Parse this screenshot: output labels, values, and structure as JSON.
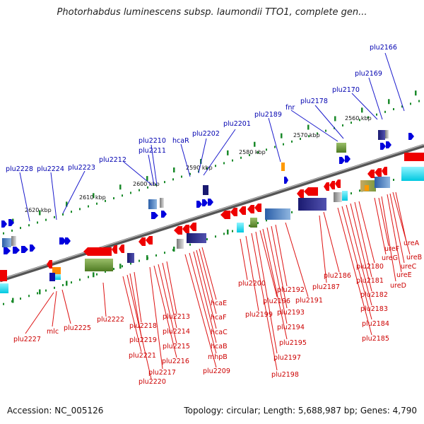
{
  "title": "Photorhabdus luminescens subsp. laumondii TTO1, complete gen...",
  "footer": {
    "accession": "Accession: NC_005126",
    "summary": "Topology: circular; Length: 5,688,987 bp; Genes: 4,790"
  },
  "colors": {
    "forward": "#0000dd",
    "reverse": "#ee0000",
    "top_label": "#0000b0",
    "bottom_label": "#cc0000"
  },
  "scale_labels": [
    "2560 kbp",
    "2570 kbp",
    "2580 kbp",
    "2590 kbp",
    "2600 kbp",
    "2610 kbp",
    "2620 kbp"
  ],
  "top_genes": [
    "plu2166",
    "plu2169",
    "plu2170",
    "plu2178",
    "fnr",
    "plu2189",
    "plu2201",
    "plu2202",
    "hcaR",
    "plu2210",
    "plu2211",
    "plu2212",
    "plu2223",
    "plu2224",
    "plu2228"
  ],
  "bottom_genes": [
    "ureA",
    "ureB",
    "ureC",
    "ureE",
    "ureD",
    "ureF",
    "ureG",
    "plu2180",
    "plu2181",
    "plu2182",
    "plu2183",
    "plu2184",
    "plu2185",
    "plu2186",
    "plu2187",
    "plu2191",
    "plu2192",
    "plu2193",
    "plu2194",
    "plu2195",
    "plu2196",
    "plu2197",
    "plu2198",
    "plu2199",
    "plu2200",
    "hcaE",
    "hcaF",
    "hcaC",
    "hcaB",
    "mhpB",
    "plu2209",
    "plu2213",
    "plu2214",
    "plu2215",
    "plu2216",
    "plu2217",
    "plu2218",
    "plu2219",
    "plu2220",
    "plu2221",
    "plu2222",
    "plu2225",
    "mlc",
    "plu2227"
  ]
}
